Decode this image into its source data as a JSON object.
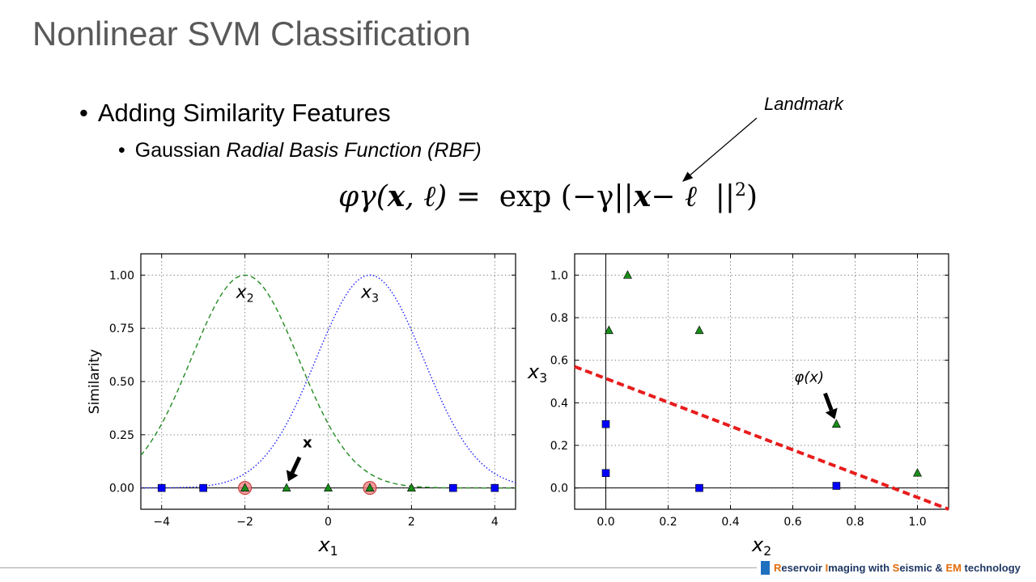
{
  "slide": {
    "title": "Nonlinear SVM Classification",
    "bullet1": "Adding Similarity Features",
    "bullet2_prefix": "Gaussian ",
    "bullet2_italic": "Radial Basis Function (RBF)",
    "landmark_label": "Landmark",
    "formula": {
      "lhs_phi": "φγ(",
      "lhs_x": "x",
      "lhs_rest": ", ℓ) =",
      "exp": "exp",
      "paren_open": "(−γ||",
      "x": "x",
      "minus_l": "− ℓ",
      "norm_close": "||",
      "sup": "2",
      "paren_close": ")"
    },
    "footer": {
      "parts": [
        {
          "text": "R",
          "accent": true
        },
        {
          "text": "eservoir ",
          "accent": false
        },
        {
          "text": "I",
          "accent": true
        },
        {
          "text": "maging with ",
          "accent": false
        },
        {
          "text": "S",
          "accent": true
        },
        {
          "text": "eismic & ",
          "accent": false
        },
        {
          "text": "EM",
          "accent": true
        },
        {
          "text": " technology",
          "accent": false
        }
      ]
    }
  },
  "chart_data": [
    {
      "type": "line",
      "xlabel": "x1",
      "ylabel": "Similarity",
      "xlim": [
        -4.5,
        4.5
      ],
      "ylim": [
        -0.1,
        1.1
      ],
      "xticks": [
        -4,
        -2,
        0,
        2,
        4
      ],
      "xtick_labels": [
        "−4",
        "−2",
        "0",
        "2",
        "4"
      ],
      "yticks": [
        0.0,
        0.25,
        0.5,
        0.75,
        1.0
      ],
      "ytick_labels": [
        "0.00",
        "0.25",
        "0.50",
        "0.75",
        "1.00"
      ],
      "grid": true,
      "gamma": 0.3,
      "series": [
        {
          "landmark": -2,
          "style": "dashed",
          "color": "#228b22",
          "label": "x2"
        },
        {
          "landmark": 1,
          "style": "dotted",
          "color": "#1a1aff",
          "label": "x3"
        }
      ],
      "blue_squares_x": [
        -4,
        -3,
        3,
        4
      ],
      "green_triangles_x": [
        -2,
        -1,
        0,
        1,
        2
      ],
      "landmark_circles_x": [
        -2,
        1
      ],
      "arrow_target_x": -1,
      "arrow_label": "x"
    },
    {
      "type": "scatter",
      "xlabel": "x2",
      "ylabel": "x3",
      "xlim": [
        -0.1,
        1.1
      ],
      "ylim": [
        -0.1,
        1.1
      ],
      "xticks": [
        0.0,
        0.2,
        0.4,
        0.6,
        0.8,
        1.0
      ],
      "xtick_labels": [
        "0.0",
        "0.2",
        "0.4",
        "0.6",
        "0.8",
        "1.0"
      ],
      "yticks": [
        0.0,
        0.2,
        0.4,
        0.6,
        0.8,
        1.0
      ],
      "ytick_labels": [
        "0.0",
        "0.2",
        "0.4",
        "0.6",
        "0.8",
        "1.0"
      ],
      "grid": true,
      "blue_squares": [
        [
          0.0,
          0.3
        ],
        [
          0.0,
          0.07
        ],
        [
          0.3,
          0.0
        ],
        [
          0.74,
          0.01
        ]
      ],
      "green_triangles": [
        [
          0.07,
          1.0
        ],
        [
          0.01,
          0.74
        ],
        [
          0.3,
          0.74
        ],
        [
          0.74,
          0.3
        ],
        [
          1.0,
          0.07
        ]
      ],
      "decision_line": [
        [
          -0.1,
          0.57
        ],
        [
          1.1,
          -0.1
        ]
      ],
      "arrow_target": [
        0.74,
        0.3
      ],
      "arrow_label": "φ(x)"
    }
  ]
}
